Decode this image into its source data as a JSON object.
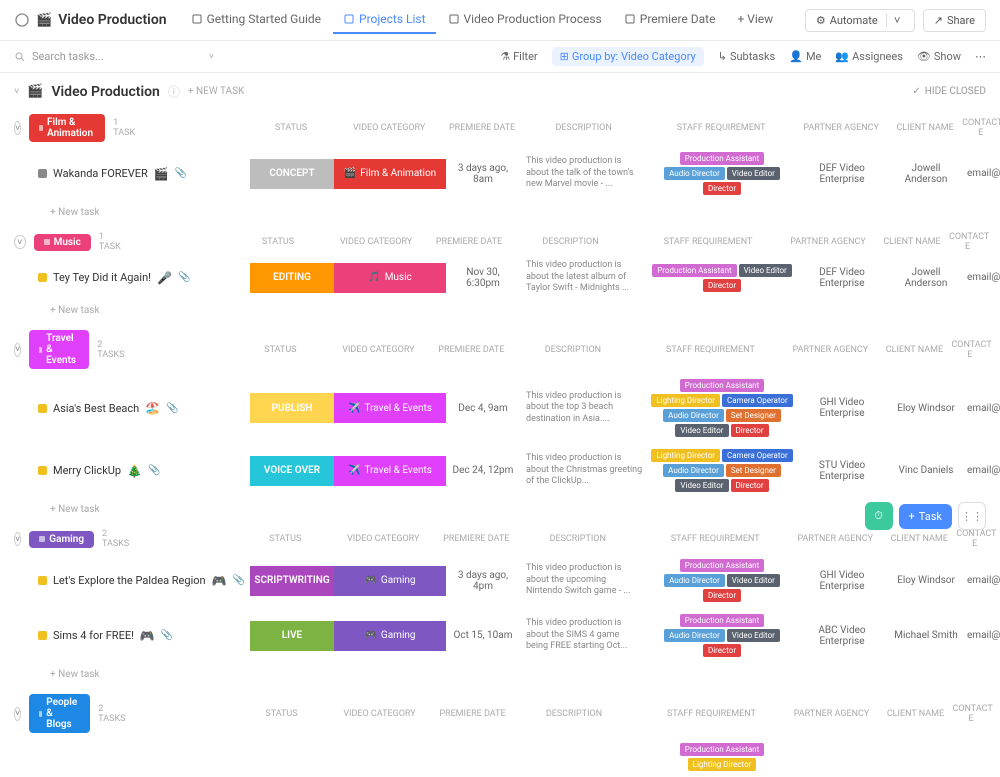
{
  "header": {
    "title": "Video Production",
    "tabs": [
      {
        "label": "Getting Started Guide",
        "active": false
      },
      {
        "label": "Projects List",
        "active": true
      },
      {
        "label": "Video Production Process",
        "active": false
      },
      {
        "label": "Premiere Date",
        "active": false
      }
    ],
    "addView": "+ View",
    "automate": "Automate",
    "share": "Share"
  },
  "toolbar": {
    "searchPlaceholder": "Search tasks...",
    "filter": "Filter",
    "groupBy": "Group by: Video Category",
    "subtasks": "Subtasks",
    "me": "Me",
    "assignees": "Assignees",
    "show": "Show"
  },
  "section": {
    "title": "Video Production",
    "newTask": "+ NEW TASK",
    "hideClosed": "HIDE CLOSED"
  },
  "columns": [
    "STATUS",
    "VIDEO CATEGORY",
    "PREMIERE DATE",
    "DESCRIPTION",
    "STAFF REQUIREMENT",
    "PARTNER AGENCY",
    "CLIENT NAME",
    "CONTACT E"
  ],
  "staffColors": {
    "Production Assistant": "#d16ad1",
    "Audio Director": "#5aa0d8",
    "Video Editor": "#5a6270",
    "Director": "#e04040",
    "Lighting Director": "#f0c020",
    "Camera Operator": "#3a6fd8",
    "Set Designer": "#e07030"
  },
  "groups": [
    {
      "name": "Film & Animation",
      "color": "#e53935",
      "count": "1 TASK",
      "tasks": [
        {
          "sq": "#888",
          "name": "Wakanda FOREVER",
          "emoji": "🎬",
          "clip": true,
          "status": {
            "label": "CONCEPT",
            "bg": "#bdbdbd"
          },
          "category": {
            "label": "Film & Animation",
            "emoji": "🎬",
            "bg": "#e53935"
          },
          "premiere": "3 days ago, 8am",
          "desc": "This video production is about the talk of the town's new Marvel movie - ...",
          "staff": [
            "Production Assistant",
            "Audio Director",
            "Video Editor",
            "Director"
          ],
          "agency": "DEF Video Enterprise",
          "client": "Jowell Anderson",
          "contact": "email@cli"
        }
      ]
    },
    {
      "name": "Music",
      "color": "#ec407a",
      "count": "1 TASK",
      "tasks": [
        {
          "sq": "#f0c020",
          "name": "Tey Tey Did it Again!",
          "emoji": "🎤",
          "clip": true,
          "status": {
            "label": "EDITING",
            "bg": "#ff9800"
          },
          "category": {
            "label": "Music",
            "emoji": "🎵",
            "bg": "#ec407a"
          },
          "premiere": "Nov 30, 6:30pm",
          "desc": "This video production is about the latest album of Taylor Swift - Midnights ...",
          "staff": [
            "Production Assistant",
            "Video Editor",
            "Director"
          ],
          "agency": "DEF Video Enterprise",
          "client": "Jowell Anderson",
          "contact": "email@cli"
        }
      ]
    },
    {
      "name": "Travel & Events",
      "color": "#e040fb",
      "count": "2 TASKS",
      "tasks": [
        {
          "sq": "#f0c020",
          "name": "Asia's Best Beach",
          "emoji": "🏖️",
          "clip": true,
          "status": {
            "label": "PUBLISH",
            "bg": "#ffd54f"
          },
          "category": {
            "label": "Travel & Events",
            "emoji": "✈️",
            "bg": "#e040fb"
          },
          "premiere": "Dec 4, 9am",
          "desc": "This video production is about the top 3 beach destination in Asia....",
          "staff": [
            "Production Assistant",
            "Lighting Director",
            "Camera Operator",
            "Audio Director",
            "Set Designer",
            "Video Editor",
            "Director"
          ],
          "agency": "GHI Video Enterprise",
          "client": "Eloy Windsor",
          "contact": "email@cli"
        },
        {
          "sq": "#f0c020",
          "name": "Merry ClickUp",
          "emoji": "🎄",
          "clip": true,
          "status": {
            "label": "VOICE OVER",
            "bg": "#26c6da"
          },
          "category": {
            "label": "Travel & Events",
            "emoji": "✈️",
            "bg": "#e040fb"
          },
          "premiere": "Dec 24, 12pm",
          "desc": "This video production is about the Christmas greeting of the ClickUp...",
          "staff": [
            "Lighting Director",
            "Camera Operator",
            "Audio Director",
            "Set Designer",
            "Video Editor",
            "Director"
          ],
          "agency": "STU Video Enterprise",
          "client": "Vinc Daniels",
          "contact": "email@cli"
        }
      ]
    },
    {
      "name": "Gaming",
      "color": "#7e57c2",
      "count": "2 TASKS",
      "tasks": [
        {
          "sq": "#f0c020",
          "name": "Let's Explore the Paldea Region",
          "emoji": "🎮",
          "clip": true,
          "status": {
            "label": "SCRIPTWRITING",
            "bg": "#ab47bc"
          },
          "category": {
            "label": "Gaming",
            "emoji": "🎮",
            "bg": "#7e57c2"
          },
          "premiere": "3 days ago, 4pm",
          "desc": "This video production is about the upcoming Nintendo Switch game - ...",
          "staff": [
            "Production Assistant",
            "Audio Director",
            "Video Editor",
            "Director"
          ],
          "agency": "GHI Video Enterprise",
          "client": "Eloy Windsor",
          "contact": "email@cli"
        },
        {
          "sq": "#f0c020",
          "name": "Sims 4 for FREE!",
          "emoji": "🎮",
          "clip": true,
          "status": {
            "label": "LIVE",
            "bg": "#7cb342"
          },
          "category": {
            "label": "Gaming",
            "emoji": "🎮",
            "bg": "#7e57c2"
          },
          "premiere": "Oct 15, 10am",
          "desc": "This video production is about the SIMS 4 game being FREE starting Oct...",
          "staff": [
            "Production Assistant",
            "Audio Director",
            "Video Editor",
            "Director"
          ],
          "agency": "ABC Video Enterprise",
          "client": "Michael Smith",
          "contact": "email@cli"
        }
      ]
    },
    {
      "name": "People & Blogs",
      "color": "#1e88e5",
      "count": "2 TASKS",
      "tasks": [
        {
          "sq": "#888",
          "name": "",
          "emoji": "",
          "clip": false,
          "status": {
            "label": "",
            "bg": ""
          },
          "category": {
            "label": "",
            "emoji": "",
            "bg": ""
          },
          "premiere": "",
          "desc": "",
          "staff": [
            "Production Assistant",
            "Lighting Director"
          ],
          "agency": "",
          "client": "",
          "contact": ""
        }
      ]
    }
  ],
  "newTaskLabel": "+ New task",
  "fab": {
    "task": "Task"
  }
}
